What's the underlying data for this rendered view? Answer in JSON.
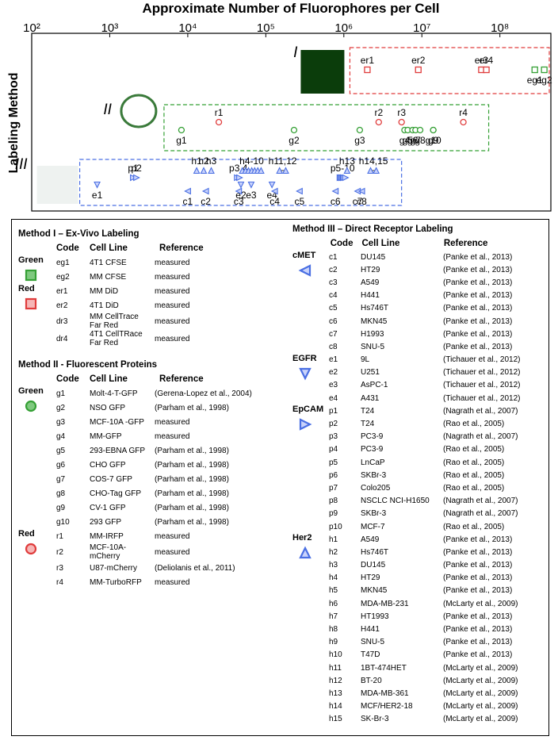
{
  "chart_data": {
    "type": "scatter",
    "title": "Approximate Number of Fluorophores per Cell",
    "y_label": "Labeling Method",
    "log_x": true,
    "xlim": [
      100,
      450000000
    ],
    "xticks": [
      {
        "value": 100,
        "label": "10²"
      },
      {
        "value": 1000,
        "label": "10³"
      },
      {
        "value": 10000,
        "label": "10⁴"
      },
      {
        "value": 100000,
        "label": "10⁵"
      },
      {
        "value": 1000000,
        "label": "10⁶"
      },
      {
        "value": 10000000,
        "label": "10⁷"
      },
      {
        "value": 100000000,
        "label": "10⁸"
      }
    ],
    "rows": [
      {
        "label": "I",
        "color": "#e03c3c",
        "groups": [
          {
            "label": "er1",
            "marker": "square",
            "color": "#e03c3c",
            "x": [
              2000000
            ]
          },
          {
            "label": "er2",
            "marker": "square",
            "color": "#e03c3c",
            "x": [
              9000000
            ]
          },
          {
            "label": "er3",
            "marker": "square",
            "color": "#e03c3c",
            "x": [
              58000000
            ]
          },
          {
            "label": "er4",
            "marker": "square",
            "color": "#e03c3c",
            "x": [
              67000000
            ]
          },
          {
            "label": "eg1",
            "marker": "square",
            "color": "#35a035",
            "x": [
              280000000
            ]
          },
          {
            "label": "eg2",
            "marker": "square",
            "color": "#35a035",
            "x": [
              370000000
            ]
          }
        ]
      },
      {
        "label": "II",
        "color": "#35a035",
        "groups": [
          {
            "label": "g1",
            "marker": "circle",
            "color": "#35a035",
            "x": [
              8300
            ]
          },
          {
            "label": "r1",
            "marker": "circle",
            "color": "#e03c3c",
            "x": [
              25000
            ]
          },
          {
            "label": "g2",
            "marker": "circle",
            "color": "#35a035",
            "x": [
              230000
            ]
          },
          {
            "label": "g3",
            "marker": "circle",
            "color": "#35a035",
            "x": [
              1600000
            ]
          },
          {
            "label": "r2",
            "marker": "circle",
            "color": "#e03c3c",
            "x": [
              2800000
            ]
          },
          {
            "label": "r3",
            "marker": "circle",
            "color": "#e03c3c",
            "x": [
              5500000
            ]
          },
          {
            "label": "g4",
            "marker": "circle",
            "color": "#35a035",
            "x": [
              6000000
            ]
          },
          {
            "label": "g5",
            "marker": "circle",
            "color": "#35a035",
            "x": [
              6600000
            ]
          },
          {
            "label": "g6",
            "marker": "circle",
            "color": "#35a035",
            "x": [
              7600000
            ]
          },
          {
            "label": "g7",
            "marker": "circle",
            "color": "#35a035",
            "x": [
              8300000
            ]
          },
          {
            "label": "g8",
            "marker": "circle",
            "color": "#35a035",
            "x": [
              9500000
            ]
          },
          {
            "label": "g9",
            "marker": "circle",
            "color": "#35a035",
            "x": [
              14000000
            ]
          },
          {
            "label": "g10",
            "marker": "circle",
            "color": "#35a035",
            "x": [
              14000000
            ]
          },
          {
            "label": "r4",
            "marker": "circle",
            "color": "#e03c3c",
            "x": [
              34000000
            ]
          }
        ]
      },
      {
        "label": "III",
        "color": "#4a6fe3",
        "groups": [
          {
            "label": "e1",
            "marker": "tri-down",
            "color": "#4a6fe3",
            "x": [
              690
            ]
          },
          {
            "label": "p1",
            "marker": "tri-right",
            "color": "#4a6fe3",
            "x": [
              2000
            ]
          },
          {
            "label": "p2",
            "marker": "tri-right",
            "color": "#4a6fe3",
            "x": [
              2200
            ]
          },
          {
            "label": "h1",
            "marker": "tri-up",
            "color": "#4a6fe3",
            "x": [
              13000
            ]
          },
          {
            "label": "h2",
            "marker": "tri-up",
            "color": "#4a6fe3",
            "x": [
              16000
            ]
          },
          {
            "label": "h3",
            "marker": "tri-up",
            "color": "#4a6fe3",
            "x": [
              20000
            ]
          },
          {
            "label": "c1",
            "marker": "tri-left",
            "color": "#4a6fe3",
            "x": [
              10000
            ]
          },
          {
            "label": "c2",
            "marker": "tri-left",
            "color": "#4a6fe3",
            "x": [
              17000
            ]
          },
          {
            "label": "p3,4",
            "marker": "tri-right",
            "color": "#4a6fe3",
            "x": [
              43000,
              46000
            ]
          },
          {
            "label": "h4-10",
            "marker": "tri-up",
            "color": "#4a6fe3",
            "x": [
              50000,
              55000,
              60000,
              66000,
              72000,
              79000,
              87000
            ]
          },
          {
            "label": "e2",
            "marker": "tri-down",
            "color": "#4a6fe3",
            "x": [
              48000
            ]
          },
          {
            "label": "c3",
            "marker": "tri-left",
            "color": "#4a6fe3",
            "x": [
              45000
            ]
          },
          {
            "label": "e3",
            "marker": "tri-down",
            "color": "#4a6fe3",
            "x": [
              65000
            ]
          },
          {
            "label": "e4",
            "marker": "tri-down",
            "color": "#4a6fe3",
            "x": [
              120000
            ]
          },
          {
            "label": "c4",
            "marker": "tri-left",
            "color": "#4a6fe3",
            "x": [
              130000
            ]
          },
          {
            "label": "h11,12",
            "marker": "tri-up",
            "color": "#4a6fe3",
            "x": [
              150000,
              180000
            ]
          },
          {
            "label": "c5",
            "marker": "tri-left",
            "color": "#4a6fe3",
            "x": [
              270000
            ]
          },
          {
            "label": "p5-10",
            "marker": "tri-right",
            "color": "#4a6fe3",
            "x": [
              890000,
              920000,
              950000,
              980000,
              1000000,
              1050000
            ]
          },
          {
            "label": "h13",
            "marker": "tri-up",
            "color": "#4a6fe3",
            "x": [
              1100000
            ]
          },
          {
            "label": "c6",
            "marker": "tri-left",
            "color": "#4a6fe3",
            "x": [
              780000
            ]
          },
          {
            "label": "h14,15",
            "marker": "tri-up",
            "color": "#4a6fe3",
            "x": [
              2200000,
              2600000
            ]
          },
          {
            "label": "c7",
            "marker": "tri-left",
            "color": "#4a6fe3",
            "x": [
              1500000
            ]
          },
          {
            "label": "c8",
            "marker": "tri-left",
            "color": "#4a6fe3",
            "x": [
              1700000
            ]
          }
        ]
      }
    ]
  },
  "tables": [
    {
      "title": "Method I – Ex-Vivo Labeling",
      "headers": [
        "Code",
        "Cell Line",
        "Reference"
      ],
      "groups": [
        {
          "name": "Green",
          "marker": "square",
          "color": "#35a035",
          "rows": [
            [
              "eg1",
              "4T1 CFSE",
              "measured"
            ],
            [
              "eg2",
              "MM CFSE",
              "measured"
            ]
          ]
        },
        {
          "name": "Red",
          "marker": "square",
          "color": "#e03c3c",
          "rows": [
            [
              "er1",
              "MM DiD",
              "measured"
            ],
            [
              "er2",
              "4T1 DiD",
              "measured"
            ],
            [
              "dr3",
              "MM CellTrace Far Red",
              "measured"
            ],
            [
              "dr4",
              "4T1 CellTRace Far Red",
              "measured"
            ]
          ]
        }
      ]
    },
    {
      "title": "Method II - Fluorescent Proteins",
      "headers": [
        "Code",
        "Cell Line",
        "Reference"
      ],
      "groups": [
        {
          "name": "Green",
          "marker": "circle",
          "color": "#35a035",
          "rows": [
            [
              "g1",
              "Molt-4-T-GFP",
              "(Gerena-Lopez et al., 2004)"
            ],
            [
              "g2",
              "NSO GFP",
              "(Parham et al., 1998)"
            ],
            [
              "g3",
              "MCF-10A -GFP",
              "measured"
            ],
            [
              "g4",
              "MM-GFP",
              "measured"
            ],
            [
              "g5",
              "293-EBNA GFP",
              "(Parham et al., 1998)"
            ],
            [
              "g6",
              "CHO GFP",
              "(Parham et al., 1998)"
            ],
            [
              "g7",
              "COS-7 GFP",
              "(Parham et al., 1998)"
            ],
            [
              "g8",
              "CHO-Tag GFP",
              "(Parham et al., 1998)"
            ],
            [
              "g9",
              "CV-1 GFP",
              "(Parham et al., 1998)"
            ],
            [
              "g10",
              "293 GFP",
              "(Parham et al., 1998)"
            ]
          ]
        },
        {
          "name": "Red",
          "marker": "circle",
          "color": "#e03c3c",
          "rows": [
            [
              "r1",
              "MM-IRFP",
              "measured"
            ],
            [
              "r2",
              "MCF-10A-mCherry",
              "measured"
            ],
            [
              "r3",
              "U87-mCherry",
              "(Deliolanis et al., 2011)"
            ],
            [
              "r4",
              "MM-TurboRFP",
              "measured"
            ]
          ]
        }
      ]
    },
    {
      "title": "Method III – Direct Receptor Labeling",
      "headers": [
        "Code",
        "Cell Line",
        "Reference"
      ],
      "groups": [
        {
          "name": "cMET",
          "marker": "tri-left",
          "color": "#4a6fe3",
          "rows": [
            [
              "c1",
              "DU145",
              "(Panke et al., 2013)"
            ],
            [
              "c2",
              "HT29",
              "(Panke et al., 2013)"
            ],
            [
              "c3",
              "A549",
              "(Panke et al., 2013)"
            ],
            [
              "c4",
              "H441",
              "(Panke et al., 2013)"
            ],
            [
              "c5",
              "Hs746T",
              "(Panke et al., 2013)"
            ],
            [
              "c6",
              "MKN45",
              "(Panke et al., 2013)"
            ],
            [
              "c7",
              "H1993",
              "(Panke et al., 2013)"
            ],
            [
              "c8",
              "SNU-5",
              "(Panke et al., 2013)"
            ]
          ]
        },
        {
          "name": "EGFR",
          "marker": "tri-down",
          "color": "#4a6fe3",
          "rows": [
            [
              "e1",
              "9L",
              "(Tichauer et al., 2012)"
            ],
            [
              "e2",
              "U251",
              "(Tichauer et al., 2012)"
            ],
            [
              "e3",
              "AsPC-1",
              "(Tichauer et al., 2012)"
            ],
            [
              "e4",
              "A431",
              "(Tichauer et al., 2012)"
            ]
          ]
        },
        {
          "name": "EpCAM",
          "marker": "tri-right",
          "color": "#4a6fe3",
          "rows": [
            [
              "p1",
              "T24",
              "(Nagrath et al., 2007)"
            ],
            [
              "p2",
              "T24",
              "(Rao et al., 2005)"
            ],
            [
              "p3",
              "PC3-9",
              "(Nagrath et al., 2007)"
            ],
            [
              "p4",
              "PC3-9",
              "(Rao et al., 2005)"
            ],
            [
              "p5",
              "LnCaP",
              "(Rao et al., 2005)"
            ],
            [
              "p6",
              "SKBr-3",
              "(Rao et al., 2005)"
            ],
            [
              "p7",
              "Colo205",
              "(Rao et al., 2005)"
            ],
            [
              "p8",
              "NSCLC NCI-H1650",
              "(Nagrath et al., 2007)"
            ],
            [
              "p9",
              "SKBr-3",
              "(Nagrath et al., 2007)"
            ],
            [
              "p10",
              "MCF-7",
              "(Rao et al., 2005)"
            ]
          ]
        },
        {
          "name": "Her2",
          "marker": "tri-up",
          "color": "#4a6fe3",
          "rows": [
            [
              "h1",
              "A549",
              "(Panke et al., 2013)"
            ],
            [
              "h2",
              "Hs746T",
              "(Panke et al., 2013)"
            ],
            [
              "h3",
              "DU145",
              "(Panke et al., 2013)"
            ],
            [
              "h4",
              "HT29",
              "(Panke et al., 2013)"
            ],
            [
              "h5",
              "MKN45",
              "(Panke et al., 2013)"
            ],
            [
              "h6",
              "MDA-MB-231",
              "(McLarty et al., 2009)"
            ],
            [
              "h7",
              "HT1993",
              "(Panke et al., 2013)"
            ],
            [
              "h8",
              "H441",
              "(Panke et al., 2013)"
            ],
            [
              "h9",
              "SNU-5",
              "(Panke et al., 2013)"
            ],
            [
              "h10",
              "T47D",
              "(Panke et al., 2013)"
            ],
            [
              "h11",
              "1BT-474HET",
              "(McLarty et al., 2009)"
            ],
            [
              "h12",
              "BT-20",
              "(McLarty et al., 2009)"
            ],
            [
              "h13",
              "MDA-MB-361",
              "(McLarty et al., 2009)"
            ],
            [
              "h14",
              "MCF/HER2-18",
              "(McLarty et al., 2009)"
            ],
            [
              "h15",
              "SK-Br-3",
              "(McLarty et al., 2009)"
            ]
          ]
        }
      ]
    }
  ]
}
